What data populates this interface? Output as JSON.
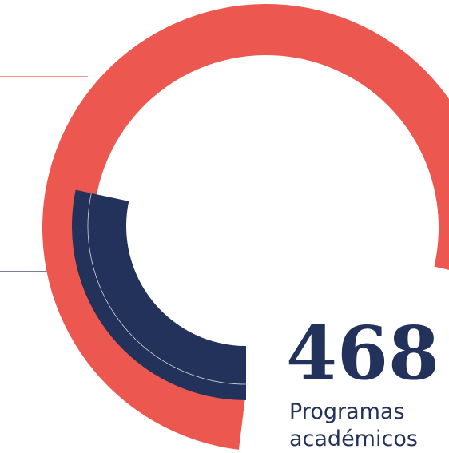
{
  "figure": {
    "value": "468",
    "caption": [
      "Programas",
      "académicos"
    ]
  }
}
